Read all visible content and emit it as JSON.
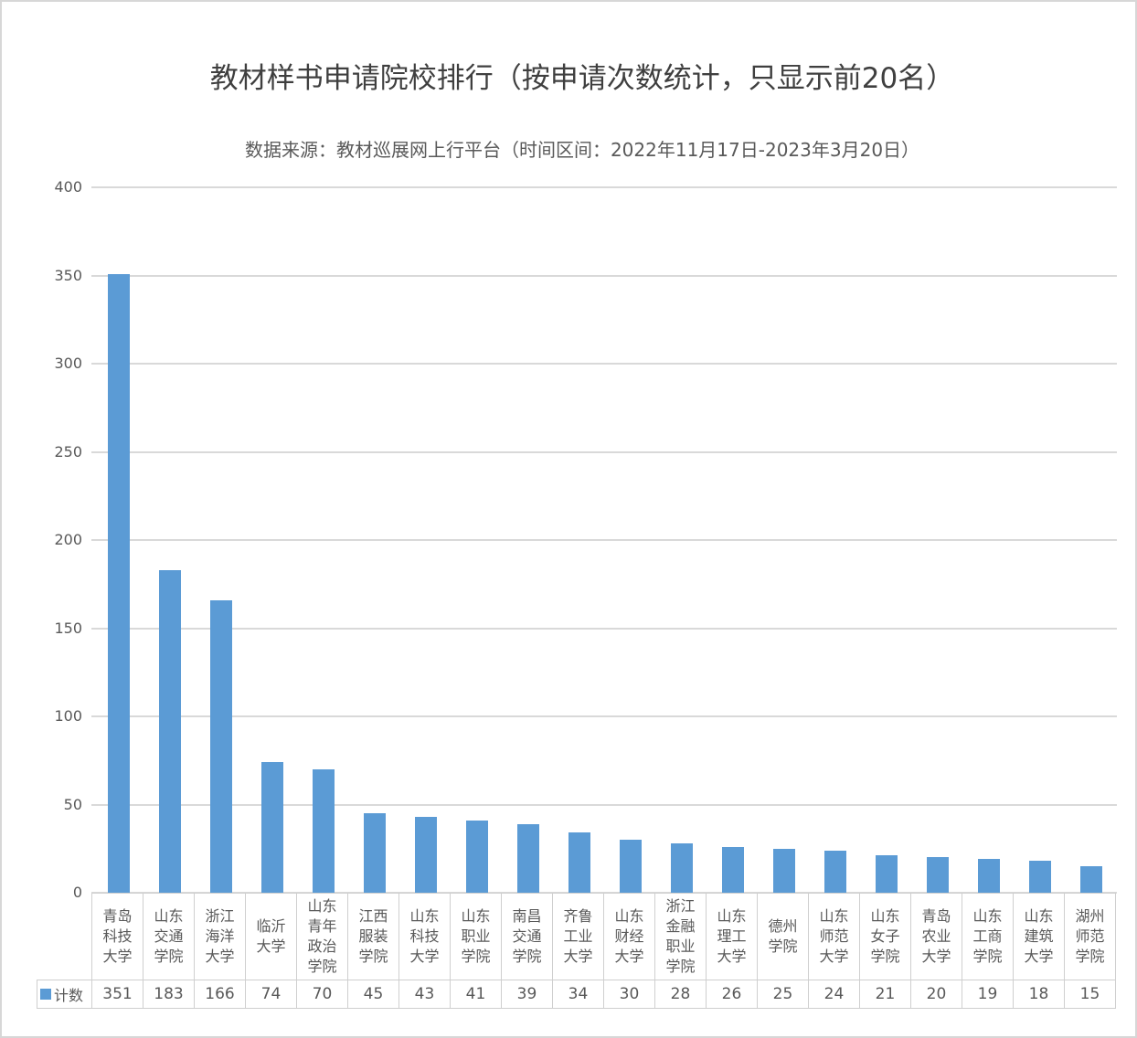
{
  "chart_data": {
    "type": "bar",
    "title": "教材样书申请院校排行（按申请次数统计，只显示前20名）",
    "subtitle": "数据来源：教材巡展网上行平台（时间区间：2022年11月17日-2023年3月20日）",
    "legend": "计数",
    "legend_position": "bottom-left of data table",
    "grid": true,
    "categories": [
      "青岛科技大学",
      "山东交通学院",
      "浙江海洋大学",
      "临沂大学",
      "山东青年政治学院",
      "江西服装学院",
      "山东科技大学",
      "山东职业学院",
      "南昌交通学院",
      "齐鲁工业大学",
      "山东财经大学",
      "浙江金融职业学院",
      "山东理工大学",
      "德州学院",
      "山东师范大学",
      "山东女子学院",
      "青岛农业大学",
      "山东工商学院",
      "山东建筑大学",
      "湖州师范学院"
    ],
    "values": [
      351,
      183,
      166,
      74,
      70,
      45,
      43,
      41,
      39,
      34,
      30,
      28,
      26,
      25,
      24,
      21,
      20,
      19,
      18,
      15
    ],
    "ylim": [
      0,
      400
    ],
    "ytick_interval": 50,
    "ytick_labels": [
      "0",
      "50",
      "100",
      "150",
      "200",
      "250",
      "300",
      "350",
      "400"
    ],
    "colors": {
      "bar": "#5b9bd5",
      "gridline": "#d9d9d9",
      "table_border": "#cfcfcf",
      "text": "#595959",
      "title_text": "#3f3f3f"
    }
  }
}
